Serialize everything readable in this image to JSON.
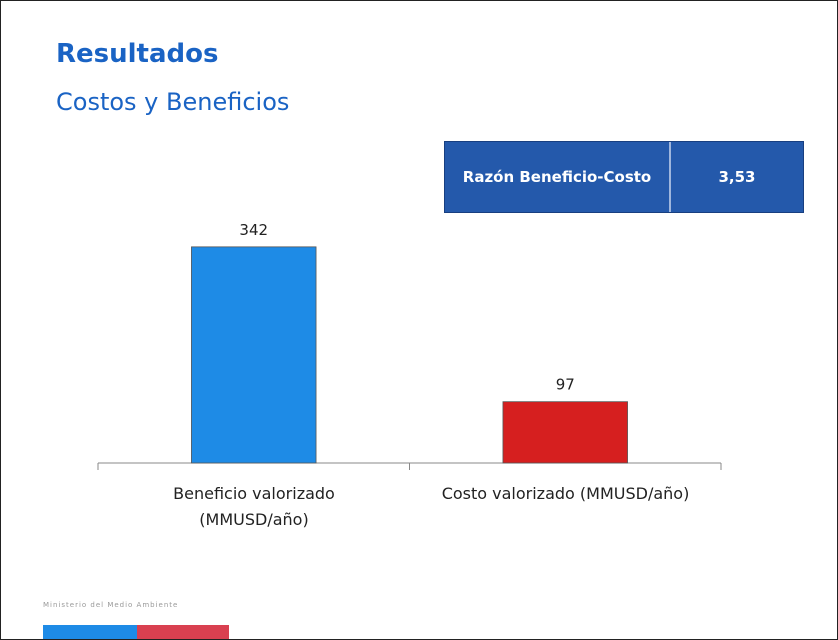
{
  "title": "Resultados",
  "subtitle": "Costos y Beneficios",
  "ratio_table": {
    "label": "Razón Beneficio-Costo",
    "value": "3,53"
  },
  "footer": "Ministerio del Medio Ambiente",
  "chart_data": {
    "type": "bar",
    "categories": [
      "Beneficio valorizado\n(MMUSD/año)",
      "Costo valorizado (MMUSD/año)"
    ],
    "values": [
      342,
      97
    ],
    "colors": [
      "#1e8be6",
      "#d61f1f"
    ]
  }
}
